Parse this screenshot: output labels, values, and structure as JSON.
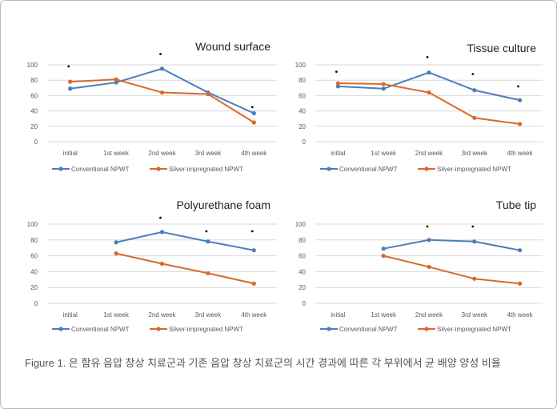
{
  "caption": "Figure 1. 은 함유 음압 창상 치료군과 기존 음압 창상 치료군의 시간 경과에 따른 각 부위에서 균 배양 양성 비율",
  "colors": {
    "conventional": "#4a7ebb",
    "silver": "#d8692a",
    "grid": "#d9d9d9",
    "text": "#595959"
  },
  "chart_data": [
    {
      "type": "line",
      "title": "Wound surface",
      "categories": [
        "initial",
        "1st week",
        "2nd week",
        "3rd week",
        "4th week"
      ],
      "ylim": [
        0,
        100
      ],
      "yticks": [
        "0",
        "20",
        "40",
        "60",
        "80",
        "100"
      ],
      "grid": true,
      "legend": "bottom",
      "series": [
        {
          "name": "Conventional NPWT",
          "values": [
            69,
            77,
            95,
            64,
            37
          ]
        },
        {
          "name": "Silver-impregnated NPWT",
          "values": [
            78,
            81,
            64,
            62,
            25
          ]
        }
      ],
      "significance_marks": [
        {
          "category": "initial",
          "value": 98
        },
        {
          "category": "2nd week",
          "value": 114
        },
        {
          "category": "4th week",
          "value": 45
        }
      ]
    },
    {
      "type": "line",
      "title": "Tissue culture",
      "categories": [
        "initial",
        "1st week",
        "2nd week",
        "3rd week",
        "4th week"
      ],
      "ylim": [
        0,
        100
      ],
      "yticks": [
        "0",
        "20",
        "40",
        "60",
        "80",
        "100"
      ],
      "grid": true,
      "legend": "bottom",
      "series": [
        {
          "name": "Conventional NPWT",
          "values": [
            72,
            69,
            90,
            67,
            54
          ]
        },
        {
          "name": "Silver-impregnated NPWT",
          "values": [
            76,
            75,
            64,
            31,
            23
          ]
        }
      ],
      "significance_marks": [
        {
          "category": "initial",
          "value": 91
        },
        {
          "category": "2nd week",
          "value": 110
        },
        {
          "category": "3rd week",
          "value": 88
        },
        {
          "category": "4th week",
          "value": 72
        }
      ]
    },
    {
      "type": "line",
      "title": "Polyurethane foam",
      "categories": [
        "initial",
        "1st week",
        "2nd week",
        "3rd week",
        "4th week"
      ],
      "ylim": [
        0,
        100
      ],
      "yticks": [
        "0",
        "20",
        "40",
        "60",
        "80",
        "100"
      ],
      "grid": true,
      "legend": "bottom",
      "series": [
        {
          "name": "Conventional NPWT",
          "values": [
            null,
            77,
            90,
            78,
            67
          ]
        },
        {
          "name": "Silver-impregnated NPWT",
          "values": [
            null,
            63,
            50,
            38,
            25
          ]
        }
      ],
      "significance_marks": [
        {
          "category": "2nd week",
          "value": 108
        },
        {
          "category": "3rd week",
          "value": 91
        },
        {
          "category": "4th week",
          "value": 91
        }
      ]
    },
    {
      "type": "line",
      "title": "Tube tip",
      "categories": [
        "initial",
        "1st week",
        "2nd week",
        "3rd week",
        "4th week"
      ],
      "ylim": [
        0,
        100
      ],
      "yticks": [
        "0",
        "20",
        "40",
        "60",
        "80",
        "100"
      ],
      "grid": true,
      "legend": "bottom",
      "series": [
        {
          "name": "Conventional NPWT",
          "values": [
            null,
            69,
            80,
            78,
            67
          ]
        },
        {
          "name": "Silver-impregnated NPWT",
          "values": [
            null,
            60,
            46,
            31,
            25
          ]
        }
      ],
      "significance_marks": [
        {
          "category": "2nd week",
          "value": 97
        },
        {
          "category": "3rd week",
          "value": 97
        }
      ]
    }
  ]
}
